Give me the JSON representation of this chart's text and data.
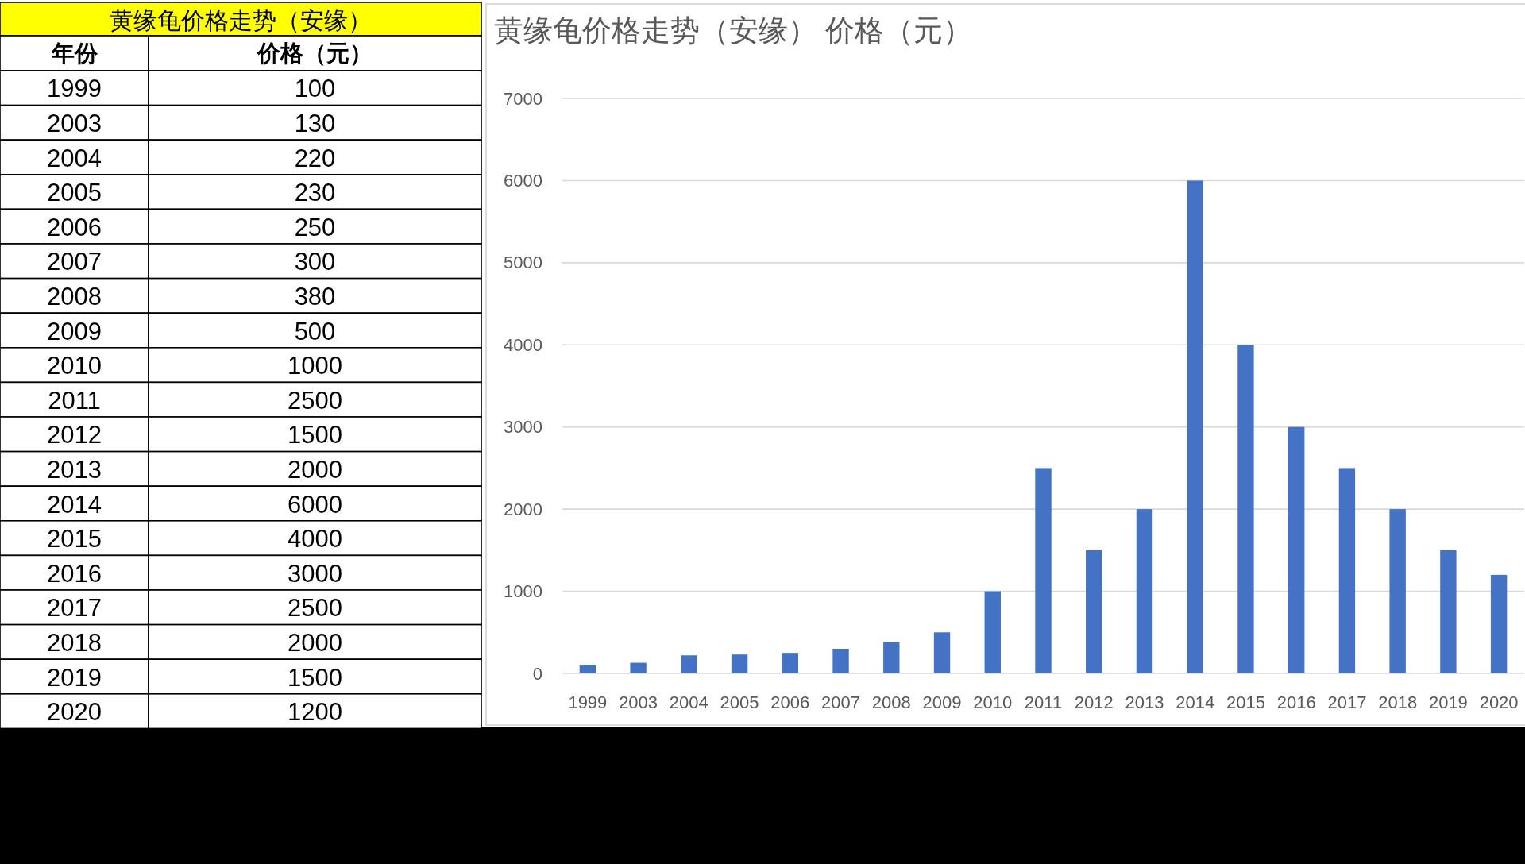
{
  "chart_data": [
    {
      "type": "heatmap",
      "title": "黄缘龟价格走势（安缘）",
      "ylabel": "年份",
      "categories": [
        "价格（元）"
      ],
      "data_labels": true,
      "y_categories": [
        "1999",
        "2003",
        "2004",
        "2005",
        "2006",
        "2007",
        "2008",
        "2009",
        "2010",
        "2011",
        "2012",
        "2013",
        "2014",
        "2015",
        "2016",
        "2017",
        "2018",
        "2019",
        "2020"
      ],
      "cells": [
        [
          100
        ],
        [
          130
        ],
        [
          220
        ],
        [
          230
        ],
        [
          250
        ],
        [
          300
        ],
        [
          380
        ],
        [
          500
        ],
        [
          1000
        ],
        [
          2500
        ],
        [
          1500
        ],
        [
          2000
        ],
        [
          6000
        ],
        [
          4000
        ],
        [
          3000
        ],
        [
          2500
        ],
        [
          2000
        ],
        [
          1500
        ],
        [
          1200
        ]
      ]
    },
    {
      "type": "bar",
      "title": "黄缘龟价格走势（安缘） 价格（元）",
      "categories": [
        "1999",
        "2003",
        "2004",
        "2005",
        "2006",
        "2007",
        "2008",
        "2009",
        "2010",
        "2011",
        "2012",
        "2013",
        "2014",
        "2015",
        "2016",
        "2017",
        "2018",
        "2019",
        "2020"
      ],
      "values": [
        100,
        130,
        220,
        230,
        250,
        300,
        380,
        500,
        1000,
        2500,
        1500,
        2000,
        6000,
        4000,
        3000,
        2500,
        2000,
        1500,
        1200
      ],
      "color": "#4472c4",
      "ylim": [
        0,
        7000
      ],
      "yticks": [
        0,
        1000,
        2000,
        3000,
        4000,
        5000,
        6000,
        7000
      ],
      "grid": "y"
    }
  ]
}
